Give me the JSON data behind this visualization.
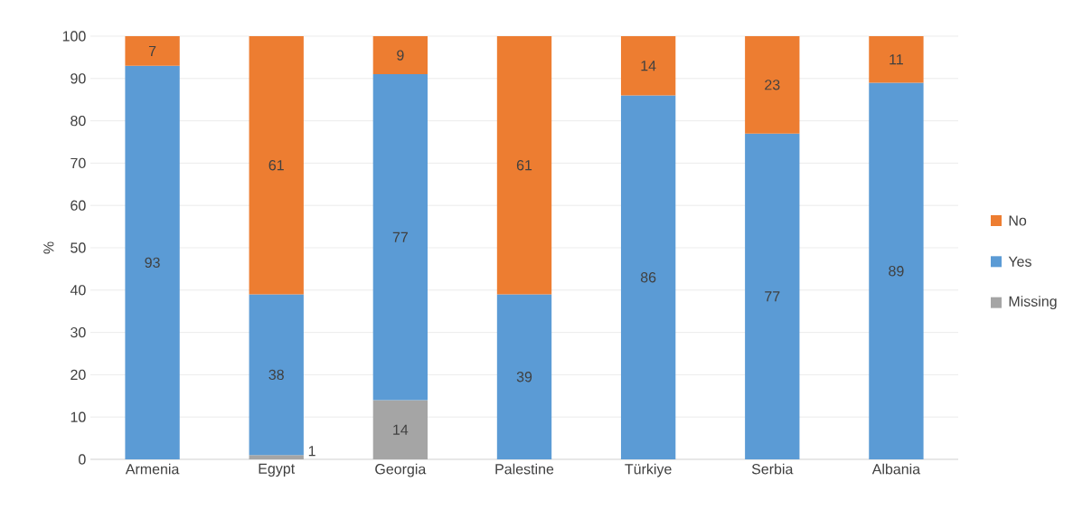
{
  "chart_data": {
    "type": "bar",
    "stacked": true,
    "ylabel": "%",
    "categories": [
      "Armenia",
      "Egypt",
      "Georgia",
      "Palestine",
      "Türkiye",
      "Serbia",
      "Albania"
    ],
    "series": [
      {
        "name": "Missing",
        "color": "#a5a5a5",
        "values": [
          null,
          1,
          14,
          null,
          null,
          null,
          null
        ]
      },
      {
        "name": "Yes",
        "color": "#5b9bd5",
        "values": [
          93,
          38,
          77,
          39,
          86,
          77,
          89
        ]
      },
      {
        "name": "No",
        "color": "#ed7d31",
        "values": [
          7,
          61,
          9,
          61,
          14,
          23,
          11
        ]
      }
    ],
    "ylim": [
      0,
      100
    ],
    "yticks": [
      0,
      10,
      20,
      30,
      40,
      50,
      60,
      70,
      80,
      90,
      100
    ],
    "grid": "y",
    "legend": "right",
    "data_labels": true
  }
}
